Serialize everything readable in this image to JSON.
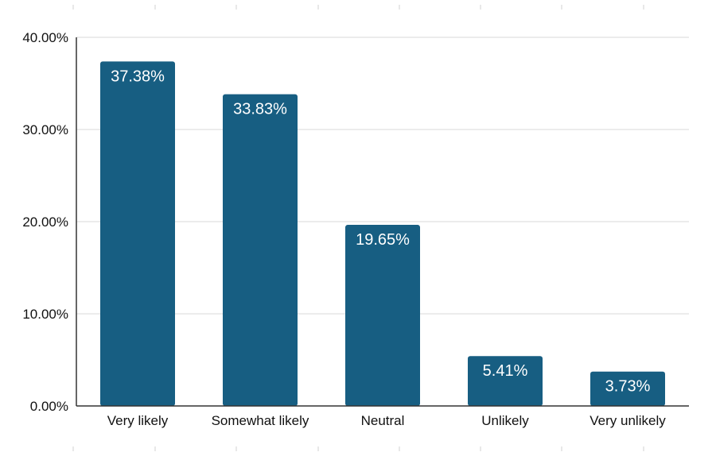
{
  "chart_data": {
    "type": "bar",
    "title": "",
    "xlabel": "",
    "ylabel": "",
    "categories": [
      "Very likely",
      "Somewhat likely",
      "Neutral",
      "Unlikely",
      "Very unlikely"
    ],
    "values": [
      37.38,
      33.83,
      19.65,
      5.41,
      3.73
    ],
    "data_labels": [
      "37.38%",
      "33.83%",
      "19.65%",
      "5.41%",
      "3.73%"
    ],
    "ylim": [
      0,
      40
    ],
    "yticks": [
      0,
      10,
      20,
      30,
      40
    ],
    "ytick_labels": [
      "0.00%",
      "10.00%",
      "20.00%",
      "30.00%",
      "40.00%"
    ],
    "grid": true,
    "legend": "none",
    "bar_color": "#175e82"
  }
}
